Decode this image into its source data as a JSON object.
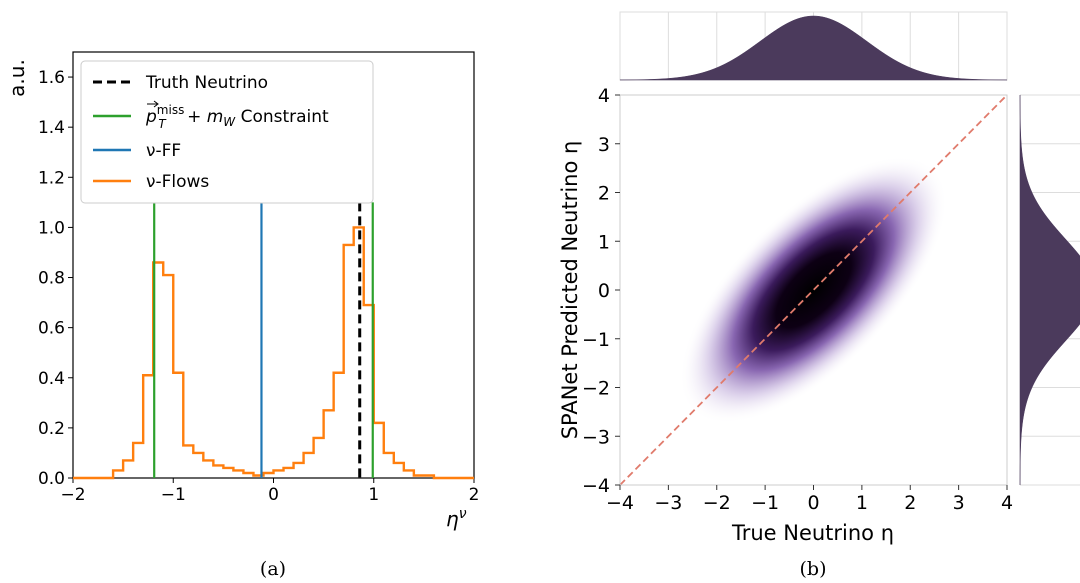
{
  "chart_data": [
    {
      "type": "line",
      "caption": "(a)",
      "xlabel": "η",
      "xlabel_superscript": "ν",
      "ylabel": "a.u.",
      "xlim": [
        -2,
        2
      ],
      "ylim": [
        0,
        1.7
      ],
      "xticks": [
        "−2",
        "−1",
        "0",
        "1",
        "2"
      ],
      "yticks": [
        "0.0",
        "0.2",
        "0.4",
        "0.6",
        "0.8",
        "1.0",
        "1.2",
        "1.4",
        "1.6"
      ],
      "legend_position": "top-left",
      "legend": [
        {
          "label": "Truth Neutrino",
          "color": "#000000",
          "style": "dashed"
        },
        {
          "label_main": "p",
          "label_sup": "miss",
          "label_sub": "T",
          "label_rest": " + m",
          "label_sub2": "W",
          "label_tail": " Constraint",
          "color": "#2ca02c",
          "style": "solid"
        },
        {
          "label": "ν-FF",
          "color": "#1f77b4",
          "style": "solid"
        },
        {
          "label": "ν-Flows",
          "color": "#ff7f0e",
          "style": "solid"
        }
      ],
      "series": [
        {
          "name": "Truth Neutrino",
          "color": "#000000",
          "kind": "vline",
          "x": 0.86,
          "y_top": 1.1
        },
        {
          "name": "p_T^miss + m_W Constraint",
          "color": "#2ca02c",
          "kind": "vlines",
          "x": [
            -1.19,
            0.99
          ],
          "y_top": 1.1
        },
        {
          "name": "ν-FF",
          "color": "#1f77b4",
          "kind": "vline",
          "x": -0.12,
          "y_top": 1.1
        },
        {
          "name": "ν-Flows",
          "color": "#ff7f0e",
          "kind": "step",
          "edges": [
            -2.0,
            -1.6,
            -1.5,
            -1.4,
            -1.3,
            -1.2,
            -1.1,
            -1.0,
            -0.9,
            -0.8,
            -0.7,
            -0.6,
            -0.5,
            -0.4,
            -0.3,
            -0.2,
            -0.1,
            0.0,
            0.1,
            0.2,
            0.3,
            0.4,
            0.5,
            0.6,
            0.7,
            0.8,
            0.9,
            1.0,
            1.1,
            1.2,
            1.3,
            1.4,
            1.6,
            2.0
          ],
          "values": [
            0.0,
            0.03,
            0.07,
            0.14,
            0.41,
            0.86,
            0.81,
            0.42,
            0.13,
            0.1,
            0.07,
            0.05,
            0.04,
            0.03,
            0.02,
            0.01,
            0.02,
            0.03,
            0.04,
            0.06,
            0.1,
            0.16,
            0.27,
            0.42,
            0.93,
            1.0,
            0.69,
            0.22,
            0.1,
            0.06,
            0.03,
            0.01,
            0.0
          ]
        }
      ]
    },
    {
      "type": "heatmap",
      "caption": "(b)",
      "xlabel": "True Neutrino η",
      "ylabel": "SPANet Predicted Neutrino η",
      "xlim": [
        -4,
        4
      ],
      "ylim": [
        -4,
        4
      ],
      "xticks": [
        "−4",
        "−3",
        "−2",
        "−1",
        "0",
        "1",
        "2",
        "3",
        "4"
      ],
      "yticks": [
        "−4",
        "−3",
        "−2",
        "−1",
        "0",
        "1",
        "2",
        "3",
        "4"
      ],
      "colormap": [
        "#ffffff",
        "#8c6bb1",
        "#000000"
      ],
      "density": {
        "mean": [
          0,
          0
        ],
        "sigma_major": 1.55,
        "sigma_minor": 0.62,
        "angle_deg": 45
      },
      "diagonal": {
        "from": [
          -4,
          -4
        ],
        "to": [
          4,
          4
        ],
        "color": "#e07b6c",
        "style": "dashed"
      },
      "marginals": {
        "color": "#4b3a5c",
        "mean": 0,
        "sigma": 1.1
      }
    }
  ]
}
